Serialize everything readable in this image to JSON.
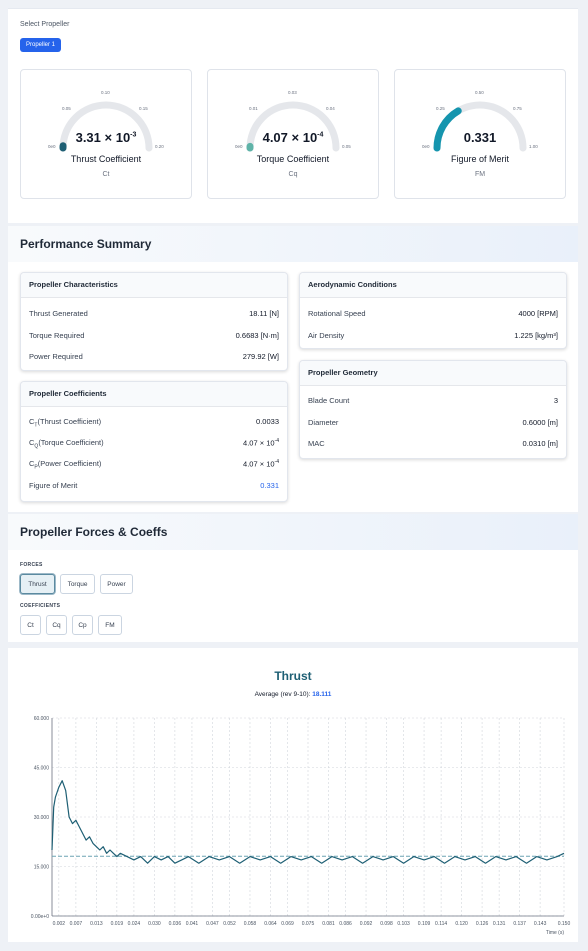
{
  "selector": {
    "label": "Select Propeller",
    "button": "Propeller 1"
  },
  "gauges": [
    {
      "value_base": "3.31 × 10",
      "value_exp": "-3",
      "name": "Thrust Coefficient",
      "symbol": "Ct",
      "ticks": [
        "0e0",
        "0.05",
        "0.10",
        "0.15",
        "0.20"
      ],
      "fraction": 0.0166,
      "color": "#1e5f74"
    },
    {
      "value_base": "4.07 × 10",
      "value_exp": "-4",
      "name": "Torque Coefficient",
      "symbol": "Cq",
      "ticks": [
        "0e0",
        "0.01",
        "0.03",
        "0.04",
        "0.05"
      ],
      "fraction": 0.0081,
      "color": "#5fb3a8"
    },
    {
      "value_base": "0.331",
      "value_exp": "",
      "name": "Figure of Merit",
      "symbol": "FM",
      "ticks": [
        "0e0",
        "0.25",
        "0.50",
        "0.75",
        "1.00"
      ],
      "fraction": 0.331,
      "color": "#1595ae"
    }
  ],
  "performance": {
    "title": "Performance Summary",
    "characteristics": {
      "title": "Propeller Characteristics",
      "rows": [
        {
          "label": "Thrust Generated",
          "value": "18.11 [N]"
        },
        {
          "label": "Torque Required",
          "value": "0.6683 [N·m]"
        },
        {
          "label": "Power Required",
          "value": "279.92 [W]"
        }
      ]
    },
    "coefficients": {
      "title": "Propeller Coefficients",
      "rows": [
        {
          "sym": "C",
          "sub": "T",
          "label": "(Thrust Coefficient)",
          "value": "0.0033",
          "exp": ""
        },
        {
          "sym": "C",
          "sub": "Q",
          "label": "(Torque Coefficient)",
          "value": "4.07 × 10",
          "exp": "-4"
        },
        {
          "sym": "C",
          "sub": "P",
          "label": "(Power Coefficient)",
          "value": "4.07 × 10",
          "exp": "-4"
        }
      ],
      "fm_label": "Figure of Merit",
      "fm_value": "0.331"
    },
    "aero": {
      "title": "Aerodynamic Conditions",
      "rows": [
        {
          "label": "Rotational Speed",
          "value": "4000 [RPM]"
        },
        {
          "label": "Air Density",
          "value": "1.225 [kg/m³]"
        }
      ]
    },
    "geometry": {
      "title": "Propeller Geometry",
      "rows": [
        {
          "label": "Blade Count",
          "value": "3"
        },
        {
          "label": "Diameter",
          "value": "0.6000 [m]"
        },
        {
          "label": "MAC",
          "value": "0.0310 [m]"
        }
      ]
    }
  },
  "forces_section": {
    "title": "Propeller Forces & Coeffs",
    "forces_label": "FORCES",
    "forces": [
      "Thrust",
      "Torque",
      "Power"
    ],
    "coefficients_label": "COEFFICIENTS",
    "coefficients": [
      "Ct",
      "Cq",
      "Cp",
      "FM"
    ]
  },
  "chart_data": {
    "type": "line",
    "title": "Thrust",
    "subtitle_label": "Average (rev 9-10):",
    "subtitle_value": "18.111",
    "xlabel": "Time (s)",
    "ylabel": "",
    "xlim": [
      0.0,
      0.15
    ],
    "ylim": [
      0,
      60
    ],
    "x_ticks": [
      "0.002",
      "0.007",
      "0.013",
      "0.019",
      "0.024",
      "0.030",
      "0.036",
      "0.041",
      "0.047",
      "0.052",
      "0.058",
      "0.064",
      "0.069",
      "0.075",
      "0.081",
      "0.086",
      "0.092",
      "0.098",
      "0.103",
      "0.109",
      "0.114",
      "0.120",
      "0.126",
      "0.131",
      "0.137",
      "0.143",
      "0.150"
    ],
    "y_ticks": [
      "0.00e+0",
      "15.000",
      "30.000",
      "45.000",
      "60.000"
    ],
    "y_tick_values": [
      0,
      15,
      30,
      45,
      60
    ],
    "average": 18.111,
    "series": [
      {
        "x": [
          0.0,
          0.0005,
          0.001,
          0.002,
          0.003,
          0.004,
          0.005,
          0.006,
          0.007,
          0.008,
          0.009,
          0.01,
          0.011,
          0.012,
          0.013,
          0.014,
          0.015,
          0.016,
          0.017,
          0.018,
          0.019,
          0.02,
          0.022,
          0.024,
          0.026,
          0.028,
          0.03,
          0.032,
          0.034,
          0.036,
          0.038,
          0.04,
          0.043,
          0.046,
          0.049,
          0.052,
          0.055,
          0.058,
          0.061,
          0.064,
          0.067,
          0.07,
          0.073,
          0.076,
          0.079,
          0.082,
          0.085,
          0.088,
          0.091,
          0.094,
          0.097,
          0.1,
          0.103,
          0.106,
          0.109,
          0.112,
          0.115,
          0.118,
          0.121,
          0.124,
          0.127,
          0.13,
          0.133,
          0.136,
          0.139,
          0.142,
          0.145,
          0.148,
          0.15
        ],
        "values": [
          20,
          33,
          36,
          39,
          41,
          38,
          30,
          28,
          29,
          27,
          25,
          23,
          24,
          22,
          21,
          20,
          21,
          19,
          20,
          19,
          18,
          19,
          18,
          17,
          18,
          16,
          18,
          17,
          18,
          16,
          17,
          18,
          16,
          18,
          17,
          18,
          16,
          18,
          17,
          18,
          16,
          18,
          17,
          18,
          16,
          18,
          17,
          18,
          16,
          18,
          17,
          18,
          16,
          18,
          17,
          18,
          16,
          18,
          17,
          18,
          16,
          18,
          17,
          18,
          16,
          18,
          17,
          18,
          19
        ]
      }
    ],
    "colors": {
      "line": "#1e5f74",
      "average": "#6ba3b4"
    }
  }
}
